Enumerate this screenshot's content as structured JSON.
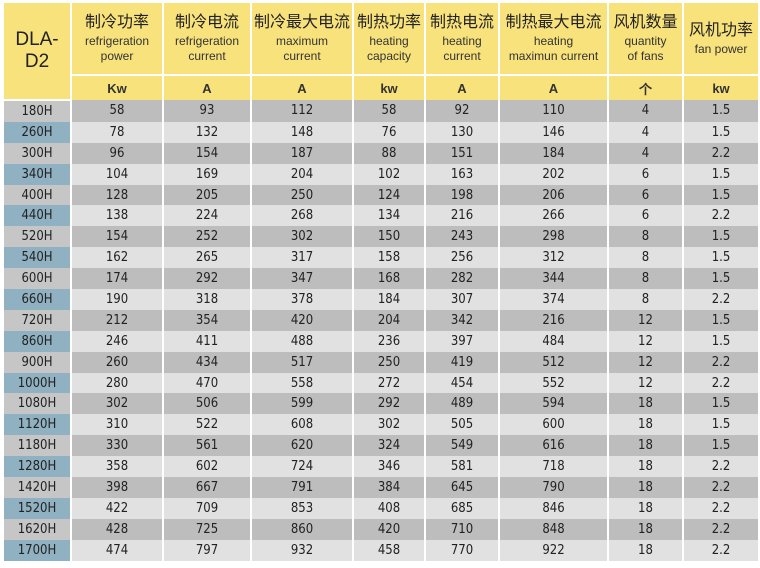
{
  "model_header": "DLA-D2",
  "columns": [
    {
      "cn": "制冷功率",
      "en1": "refrigeration",
      "en2": "power",
      "unit": "Kw"
    },
    {
      "cn": "制冷电流",
      "en1": "refrigeration",
      "en2": "current",
      "unit": "A"
    },
    {
      "cn": "制冷最大电流",
      "en1": "maximum",
      "en2": "current",
      "unit": "A"
    },
    {
      "cn": "制热功率",
      "en1": "heating",
      "en2": "capacity",
      "unit": "kw"
    },
    {
      "cn": "制热电流",
      "en1": "heating",
      "en2": "current",
      "unit": "A"
    },
    {
      "cn": "制热最大电流",
      "en1": "heating",
      "en2": "maximun current",
      "unit": "A"
    },
    {
      "cn": "风机数量",
      "en1": "quantity",
      "en2": "of fans",
      "unit": "个"
    },
    {
      "cn": "风机功率",
      "en1": "fan power",
      "en2": "",
      "unit": "kw"
    }
  ],
  "rows": [
    [
      "180H",
      "58",
      "93",
      "112",
      "58",
      "92",
      "110",
      "4",
      "1.5"
    ],
    [
      "260H",
      "78",
      "132",
      "148",
      "76",
      "130",
      "146",
      "4",
      "1.5"
    ],
    [
      "300H",
      "96",
      "154",
      "187",
      "88",
      "151",
      "184",
      "4",
      "2.2"
    ],
    [
      "340H",
      "104",
      "169",
      "204",
      "102",
      "163",
      "202",
      "6",
      "1.5"
    ],
    [
      "400H",
      "128",
      "205",
      "250",
      "124",
      "198",
      "206",
      "6",
      "1.5"
    ],
    [
      "440H",
      "138",
      "224",
      "268",
      "134",
      "216",
      "266",
      "6",
      "2.2"
    ],
    [
      "520H",
      "154",
      "252",
      "302",
      "150",
      "243",
      "298",
      "8",
      "1.5"
    ],
    [
      "540H",
      "162",
      "265",
      "317",
      "158",
      "256",
      "312",
      "8",
      "1.5"
    ],
    [
      "600H",
      "174",
      "292",
      "347",
      "168",
      "282",
      "344",
      "8",
      "1.5"
    ],
    [
      "660H",
      "190",
      "318",
      "378",
      "184",
      "307",
      "374",
      "8",
      "2.2"
    ],
    [
      "720H",
      "212",
      "354",
      "420",
      "204",
      "342",
      "216",
      "12",
      "1.5"
    ],
    [
      "860H",
      "246",
      "411",
      "488",
      "236",
      "397",
      "484",
      "12",
      "1.5"
    ],
    [
      "900H",
      "260",
      "434",
      "517",
      "250",
      "419",
      "512",
      "12",
      "2.2"
    ],
    [
      "1000H",
      "280",
      "470",
      "558",
      "272",
      "454",
      "552",
      "12",
      "2.2"
    ],
    [
      "1080H",
      "302",
      "506",
      "599",
      "292",
      "489",
      "594",
      "18",
      "1.5"
    ],
    [
      "1120H",
      "310",
      "522",
      "608",
      "302",
      "505",
      "600",
      "18",
      "1.5"
    ],
    [
      "1180H",
      "330",
      "561",
      "620",
      "324",
      "549",
      "616",
      "18",
      "1.5"
    ],
    [
      "1280H",
      "358",
      "602",
      "724",
      "346",
      "581",
      "718",
      "18",
      "2.2"
    ],
    [
      "1420H",
      "398",
      "667",
      "791",
      "384",
      "645",
      "790",
      "18",
      "2.2"
    ],
    [
      "1520H",
      "422",
      "709",
      "853",
      "408",
      "685",
      "846",
      "18",
      "2.2"
    ],
    [
      "1620H",
      "428",
      "725",
      "860",
      "420",
      "710",
      "848",
      "18",
      "2.2"
    ],
    [
      "1700H",
      "474",
      "797",
      "932",
      "458",
      "770",
      "922",
      "18",
      "2.2"
    ]
  ],
  "colors": {
    "header": "#f8e27c",
    "row_dark": "#bdbdbd",
    "row_light": "#e1e1e1",
    "model_highlight": "#90b1c1"
  }
}
